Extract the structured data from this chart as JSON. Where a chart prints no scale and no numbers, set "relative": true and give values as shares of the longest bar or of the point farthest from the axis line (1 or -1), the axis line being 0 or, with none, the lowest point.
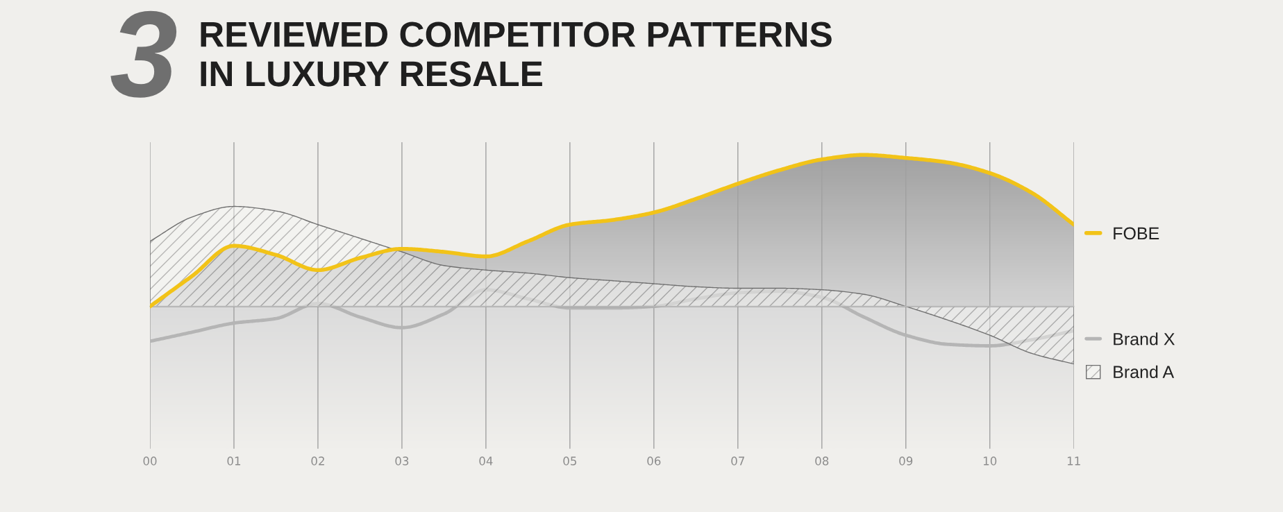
{
  "chart_data": {
    "type": "area",
    "title": "REVIEWED COMPETITOR PATTERNS\nIN LUXURY RESALE",
    "annotations": [
      "3"
    ],
    "x": [
      0,
      0.5,
      1,
      1.5,
      2,
      2.5,
      3,
      3.5,
      4,
      4.5,
      5,
      5.5,
      6,
      6.5,
      7,
      7.5,
      8,
      8.5,
      9,
      9.5,
      10,
      10.5,
      11
    ],
    "xlim": [
      0,
      11
    ],
    "xticks": [
      {
        "value": 0,
        "label": "00"
      },
      {
        "value": 1,
        "label": "01"
      },
      {
        "value": 2,
        "label": "02"
      },
      {
        "value": 3,
        "label": "03"
      },
      {
        "value": 4,
        "label": "04"
      },
      {
        "value": 5,
        "label": "05"
      },
      {
        "value": 6,
        "label": "06"
      },
      {
        "value": 7,
        "label": "07"
      },
      {
        "value": 8,
        "label": "08"
      },
      {
        "value": 9,
        "label": "09"
      },
      {
        "value": 10,
        "label": "10"
      },
      {
        "value": 11,
        "label": "11"
      }
    ],
    "relative": true,
    "grid": "x",
    "legend": "right",
    "series": [
      {
        "name": "FOBE",
        "color": "#f2c318",
        "values": [
          0.0,
          0.2,
          0.4,
          0.34,
          0.24,
          0.32,
          0.38,
          0.36,
          0.33,
          0.43,
          0.54,
          0.57,
          0.62,
          0.71,
          0.81,
          0.9,
          0.97,
          1.0,
          0.98,
          0.95,
          0.88,
          0.75,
          0.54
        ]
      },
      {
        "name": "Brand X",
        "type": "line",
        "color": "#b5b5b5",
        "values": [
          -0.23,
          -0.17,
          -0.11,
          -0.08,
          0.02,
          -0.07,
          -0.14,
          -0.05,
          0.11,
          0.05,
          -0.01,
          -0.01,
          0.0,
          0.05,
          0.09,
          0.1,
          0.06,
          -0.07,
          -0.19,
          -0.25,
          -0.26,
          -0.22,
          -0.16
        ]
      },
      {
        "name": "Brand A",
        "color": "#6f6f6f",
        "values": [
          0.43,
          0.59,
          0.66,
          0.63,
          0.54,
          0.45,
          0.36,
          0.27,
          0.24,
          0.22,
          0.19,
          0.17,
          0.15,
          0.13,
          0.12,
          0.12,
          0.11,
          0.08,
          0.0,
          -0.09,
          -0.19,
          -0.31,
          -0.38
        ]
      }
    ]
  }
}
